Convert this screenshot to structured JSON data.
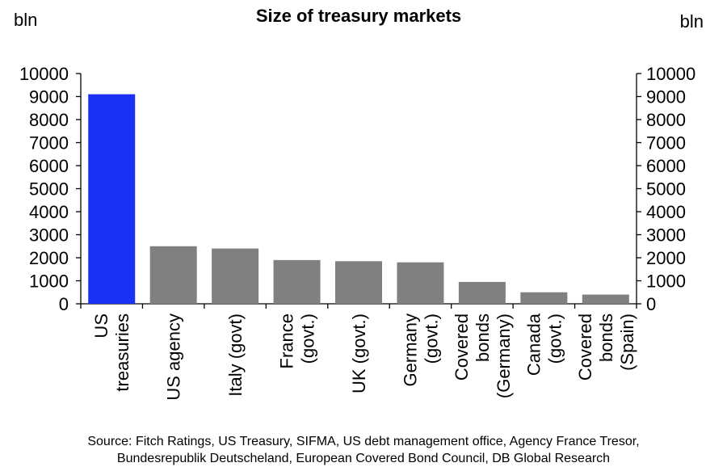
{
  "chart_data": {
    "type": "bar",
    "title": "Size of treasury markets",
    "ylabel_left": "bln",
    "ylabel_right": "bln",
    "ylim": [
      0,
      10000
    ],
    "yticks": [
      0,
      1000,
      2000,
      3000,
      4000,
      5000,
      6000,
      7000,
      8000,
      9000,
      10000
    ],
    "categories": [
      [
        "US",
        "treasuries"
      ],
      [
        "US agency"
      ],
      [
        "Italy (govt)"
      ],
      [
        "France",
        "(govt.)"
      ],
      [
        "UK (govt.)"
      ],
      [
        "Germany",
        "(govt.)"
      ],
      [
        "Covered",
        "bonds",
        "(Germany)"
      ],
      [
        "Canada",
        "(govt.)"
      ],
      [
        "Covered",
        "bonds",
        "(Spain)"
      ]
    ],
    "values": [
      9100,
      2500,
      2400,
      1900,
      1850,
      1800,
      950,
      500,
      400
    ],
    "colors": [
      "#1a30f5",
      "#808080",
      "#808080",
      "#808080",
      "#808080",
      "#808080",
      "#808080",
      "#808080",
      "#808080"
    ],
    "source": [
      "Source: Fitch Ratings, US Treasury,  SIFMA, US debt management office, Agency France Tresor,",
      "Bundesrepublik Deutscheland, European Covered Bond Council, DB Global  Research"
    ]
  }
}
